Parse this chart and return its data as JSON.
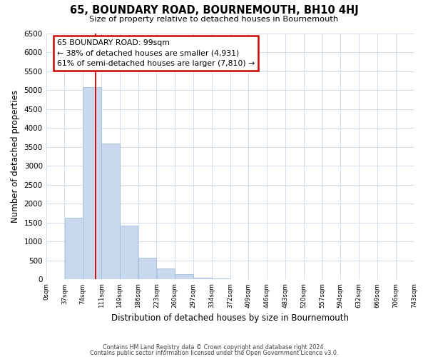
{
  "title": "65, BOUNDARY ROAD, BOURNEMOUTH, BH10 4HJ",
  "subtitle": "Size of property relative to detached houses in Bournemouth",
  "xlabel": "Distribution of detached houses by size in Bournemouth",
  "ylabel": "Number of detached properties",
  "footer_lines": [
    "Contains HM Land Registry data © Crown copyright and database right 2024.",
    "Contains public sector information licensed under the Open Government Licence v3.0."
  ],
  "bin_labels": [
    "0sqm",
    "37sqm",
    "74sqm",
    "111sqm",
    "149sqm",
    "186sqm",
    "223sqm",
    "260sqm",
    "297sqm",
    "334sqm",
    "372sqm",
    "409sqm",
    "446sqm",
    "483sqm",
    "520sqm",
    "557sqm",
    "594sqm",
    "632sqm",
    "669sqm",
    "706sqm",
    "743sqm"
  ],
  "bar_values": [
    0,
    1630,
    5080,
    3580,
    1420,
    575,
    295,
    145,
    50,
    30,
    0,
    0,
    0,
    0,
    0,
    0,
    0,
    0,
    0,
    0
  ],
  "bar_color": "#c8d9ee",
  "bar_edge_color": "#9ab5d8",
  "line_color": "#cc0000",
  "annotation_line1": "65 BOUNDARY ROAD: 99sqm",
  "annotation_line2": "← 38% of detached houses are smaller (4,931)",
  "annotation_line3": "61% of semi-detached houses are larger (7,810) →",
  "ylim": [
    0,
    6500
  ],
  "yticks": [
    0,
    500,
    1000,
    1500,
    2000,
    2500,
    3000,
    3500,
    4000,
    4500,
    5000,
    5500,
    6000,
    6500
  ],
  "n_bins": 20,
  "bin_width": 37,
  "background_color": "#ffffff",
  "grid_color": "#d0dce8"
}
